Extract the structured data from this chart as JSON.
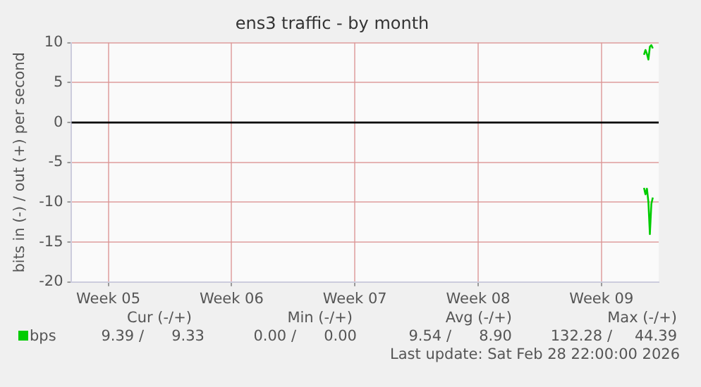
{
  "chart_data": {
    "type": "line",
    "title": "ens3 traffic - by month",
    "ylabel": "bits in (-) / out (+) per second",
    "xlim": [
      "2026-01-26T22:00",
      "2026-03-01T06:00"
    ],
    "xticks": [
      {
        "value": "2026-01-29T00:00",
        "label": "Week 05"
      },
      {
        "value": "2026-02-05T00:00",
        "label": "Week 06"
      },
      {
        "value": "2026-02-12T00:00",
        "label": "Week 07"
      },
      {
        "value": "2026-02-19T00:00",
        "label": "Week 08"
      },
      {
        "value": "2026-02-26T00:00",
        "label": "Week 09"
      }
    ],
    "ylim": [
      -20,
      10
    ],
    "yticks": [
      -20,
      -15,
      -10,
      -5,
      0,
      5,
      10
    ],
    "grid": true,
    "legend": "bottom",
    "marker": "none",
    "line_style": "solid",
    "ref_lines": [
      {
        "axis": "y",
        "value": 0,
        "color": "#000000"
      }
    ],
    "series": [
      {
        "name": "bps",
        "color": "#00cc00",
        "x": [
          "2026-02-28T10:00",
          "2026-02-28T12:00",
          "2026-02-28T14:00",
          "2026-02-28T16:00",
          "2026-02-28T18:00",
          "2026-02-28T20:00",
          "2026-02-28T22:00"
        ],
        "values": [
          8.5,
          9.1,
          8.6,
          7.9,
          9.5,
          9.7,
          9.3
        ]
      },
      {
        "color": "#00cc00",
        "x": [
          "2026-02-28T10:00",
          "2026-02-28T12:00",
          "2026-02-28T14:00",
          "2026-02-28T16:00",
          "2026-02-28T18:00",
          "2026-02-28T20:00",
          "2026-02-28T22:00"
        ],
        "values": [
          -8.2,
          -9.0,
          -8.3,
          -10,
          -14,
          -10.2,
          -9.4
        ]
      }
    ],
    "annotations": [
      "Cur (-/+)",
      "Min (-/+)",
      "Avg (-/+)",
      "Max (-/+)",
      "9.39 /",
      "9.33",
      "0.00 /",
      "0.00",
      "9.54 /",
      "8.90",
      "132.28 /",
      "44.39",
      "Last update: Sat Feb 28 22:00:00 2026"
    ]
  }
}
